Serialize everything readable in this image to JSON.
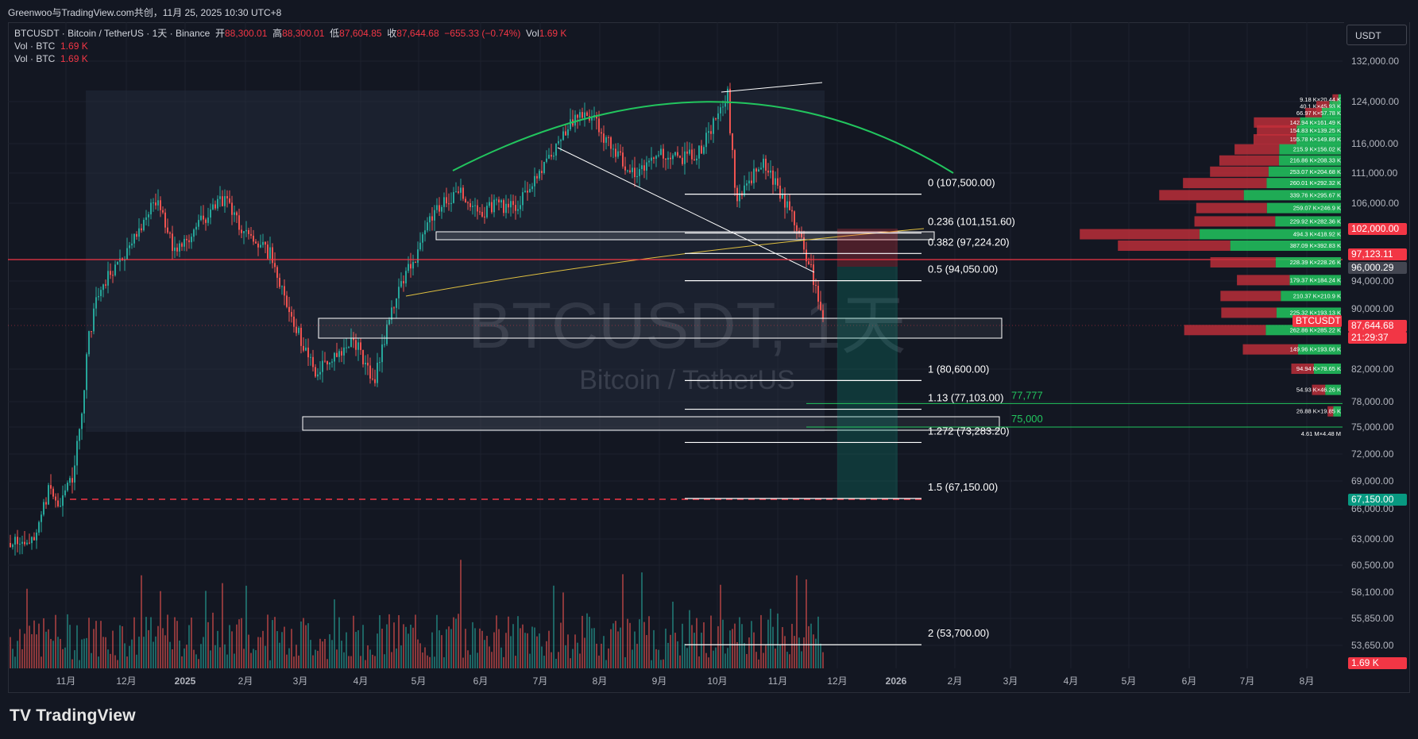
{
  "header": {
    "attribution": "Greenwoo与TradingView.com共创，11月 25, 2025 10:30 UTC+8"
  },
  "legend": {
    "symbol_line": "BTCUSDT · Bitcoin / TetherUS · 1天 · Binance",
    "open_label": "开",
    "open": "88,300.01",
    "high_label": "高",
    "high": "88,300.01",
    "low_label": "低",
    "low": "87,604.85",
    "close_label": "收",
    "close": "87,644.68",
    "change": "−655.33 (−0.74%)",
    "vol_label": "Vol",
    "vol": "1.69 K",
    "study1_label": "Vol · BTC",
    "study1_value": "1.69 K",
    "study2_label": "Vol · BTC",
    "study2_value": "1.69 K"
  },
  "currency_button": "USDT",
  "watermark": {
    "symbol": "BTCUSDT, 1天",
    "name": "Bitcoin / TetherUS"
  },
  "brand": "TradingView",
  "colors": {
    "bg": "#131722",
    "up": "#26a69a",
    "down": "#ef5350",
    "arc": "#22c55e",
    "fib": "#ffffff",
    "red_line": "#f23645",
    "vp_up": "#22c55e",
    "vp_down": "#c62f3b"
  },
  "chart_data": {
    "type": "candlestick",
    "symbol": "BTCUSDT",
    "y_axis_ticks": [
      "132,000.00",
      "124,000.00",
      "116,000.00",
      "111,000.00",
      "106,000.00",
      "102,000.00",
      "97,123.11",
      "96,000.29",
      "94,000.00",
      "90,000.00",
      "87,644.68",
      "82,000.00",
      "78,000.00",
      "75,000.00",
      "72,000.00",
      "69,000.00",
      "67,150.00",
      "66,000.00",
      "63,000.00",
      "60,500.00",
      "58,100.00",
      "55,850.00",
      "53,650.00"
    ],
    "y_axis_plain": [
      "132,000.00",
      "124,000.00",
      "116,000.00",
      "111,000.00",
      "106,000.00",
      "94,000.00",
      "90,000.00",
      "82,000.00",
      "78,000.00",
      "75,000.00",
      "72,000.00",
      "69,000.00",
      "66,000.00",
      "63,000.00",
      "60,500.00",
      "58,100.00",
      "55,850.00",
      "53,650.00"
    ],
    "price_labels": [
      {
        "text": "102,000.00",
        "color": "#f23645"
      },
      {
        "text": "97,123.11",
        "color": "#f23645"
      },
      {
        "text": "96,000.29",
        "color": "#434651"
      },
      {
        "text": "BTCUSDT",
        "color": "#f23645"
      },
      {
        "text": "87,644.68",
        "color": "#f23645"
      },
      {
        "text": "21:29:37",
        "color": "#f23645"
      },
      {
        "text": "67,150.00",
        "color": "#089981"
      },
      {
        "text": "1.69 K",
        "color": "#f23645"
      }
    ],
    "x_axis_ticks": [
      "11月",
      "12月",
      "2025",
      "2月",
      "3月",
      "4月",
      "5月",
      "6月",
      "7月",
      "8月",
      "9月",
      "10月",
      "11月",
      "12月",
      "2026",
      "2月",
      "3月",
      "4月",
      "5月",
      "6月",
      "7月",
      "8月"
    ],
    "fib_levels": [
      {
        "label": "0 (107,500.00)",
        "price": 107500
      },
      {
        "label": "0.236 (101,151.60)",
        "price": 101151.6
      },
      {
        "label": "0.382 (97,224.20)",
        "price": 97224.2
      },
      {
        "label": "0.5 (94,050.00)",
        "price": 94050
      },
      {
        "label": "1 (80,600.00)",
        "price": 80600
      },
      {
        "label": "1.13 (77,103.00)",
        "price": 77103
      },
      {
        "label": "1.272 (73,283.20)",
        "price": 73283.2
      },
      {
        "label": "1.5 (67,150.00)",
        "price": 67150
      },
      {
        "label": "2 (53,700.00)",
        "price": 53700
      }
    ],
    "horizontal_labels": [
      {
        "text": "77,777",
        "price": 77777
      },
      {
        "text": "75,000",
        "price": 75000
      }
    ],
    "volume_profile": [
      {
        "label": "9.18 K×20.44 K",
        "price": 124500
      },
      {
        "label": "40.1 K×45.93 K",
        "price": 123200
      },
      {
        "label": "66.97 K×57.78 K",
        "price": 121900
      },
      {
        "label": "142.94 K×161.49 K",
        "price": 120100
      },
      {
        "label": "154.83 K×139.25 K",
        "price": 118600
      },
      {
        "label": "155.78 K×149.89 K",
        "price": 116900
      },
      {
        "label": "215.9 K×156.02 K",
        "price": 115100
      },
      {
        "label": "216.86 K×208.33 K",
        "price": 113200
      },
      {
        "label": "253.07 K×204.68 K",
        "price": 111300
      },
      {
        "label": "260.01 K×292.32 K",
        "price": 109400
      },
      {
        "label": "339.76 K×295.67 K",
        "price": 107400
      },
      {
        "label": "259.07 K×246.9 K",
        "price": 105300
      },
      {
        "label": "229.92 K×282.36 K",
        "price": 103200
      },
      {
        "label": "494.3 K×418.92 K",
        "price": 101000
      },
      {
        "label": "387.09 K×392.83 K",
        "price": 98800
      },
      {
        "label": "228.39 K×228.26 K",
        "price": 96500
      },
      {
        "label": "179.37 K×184.24 K",
        "price": 94200
      },
      {
        "label": "210.37 K×210.9 K",
        "price": 91900
      },
      {
        "label": "225.32 K×193.13 K",
        "price": 89500
      },
      {
        "label": "262.86 K×285.22 K",
        "price": 87100
      },
      {
        "label": "149.96 K×193.06 K",
        "price": 84600
      },
      {
        "label": "94.94 K×78.65 K",
        "price": 82100
      },
      {
        "label": "54.93 K×46.26 K",
        "price": 79500
      },
      {
        "label": "26.88 K×19.85 K",
        "price": 76900
      },
      {
        "label": "4.61 M×4.48 M",
        "price": 74300
      }
    ]
  }
}
